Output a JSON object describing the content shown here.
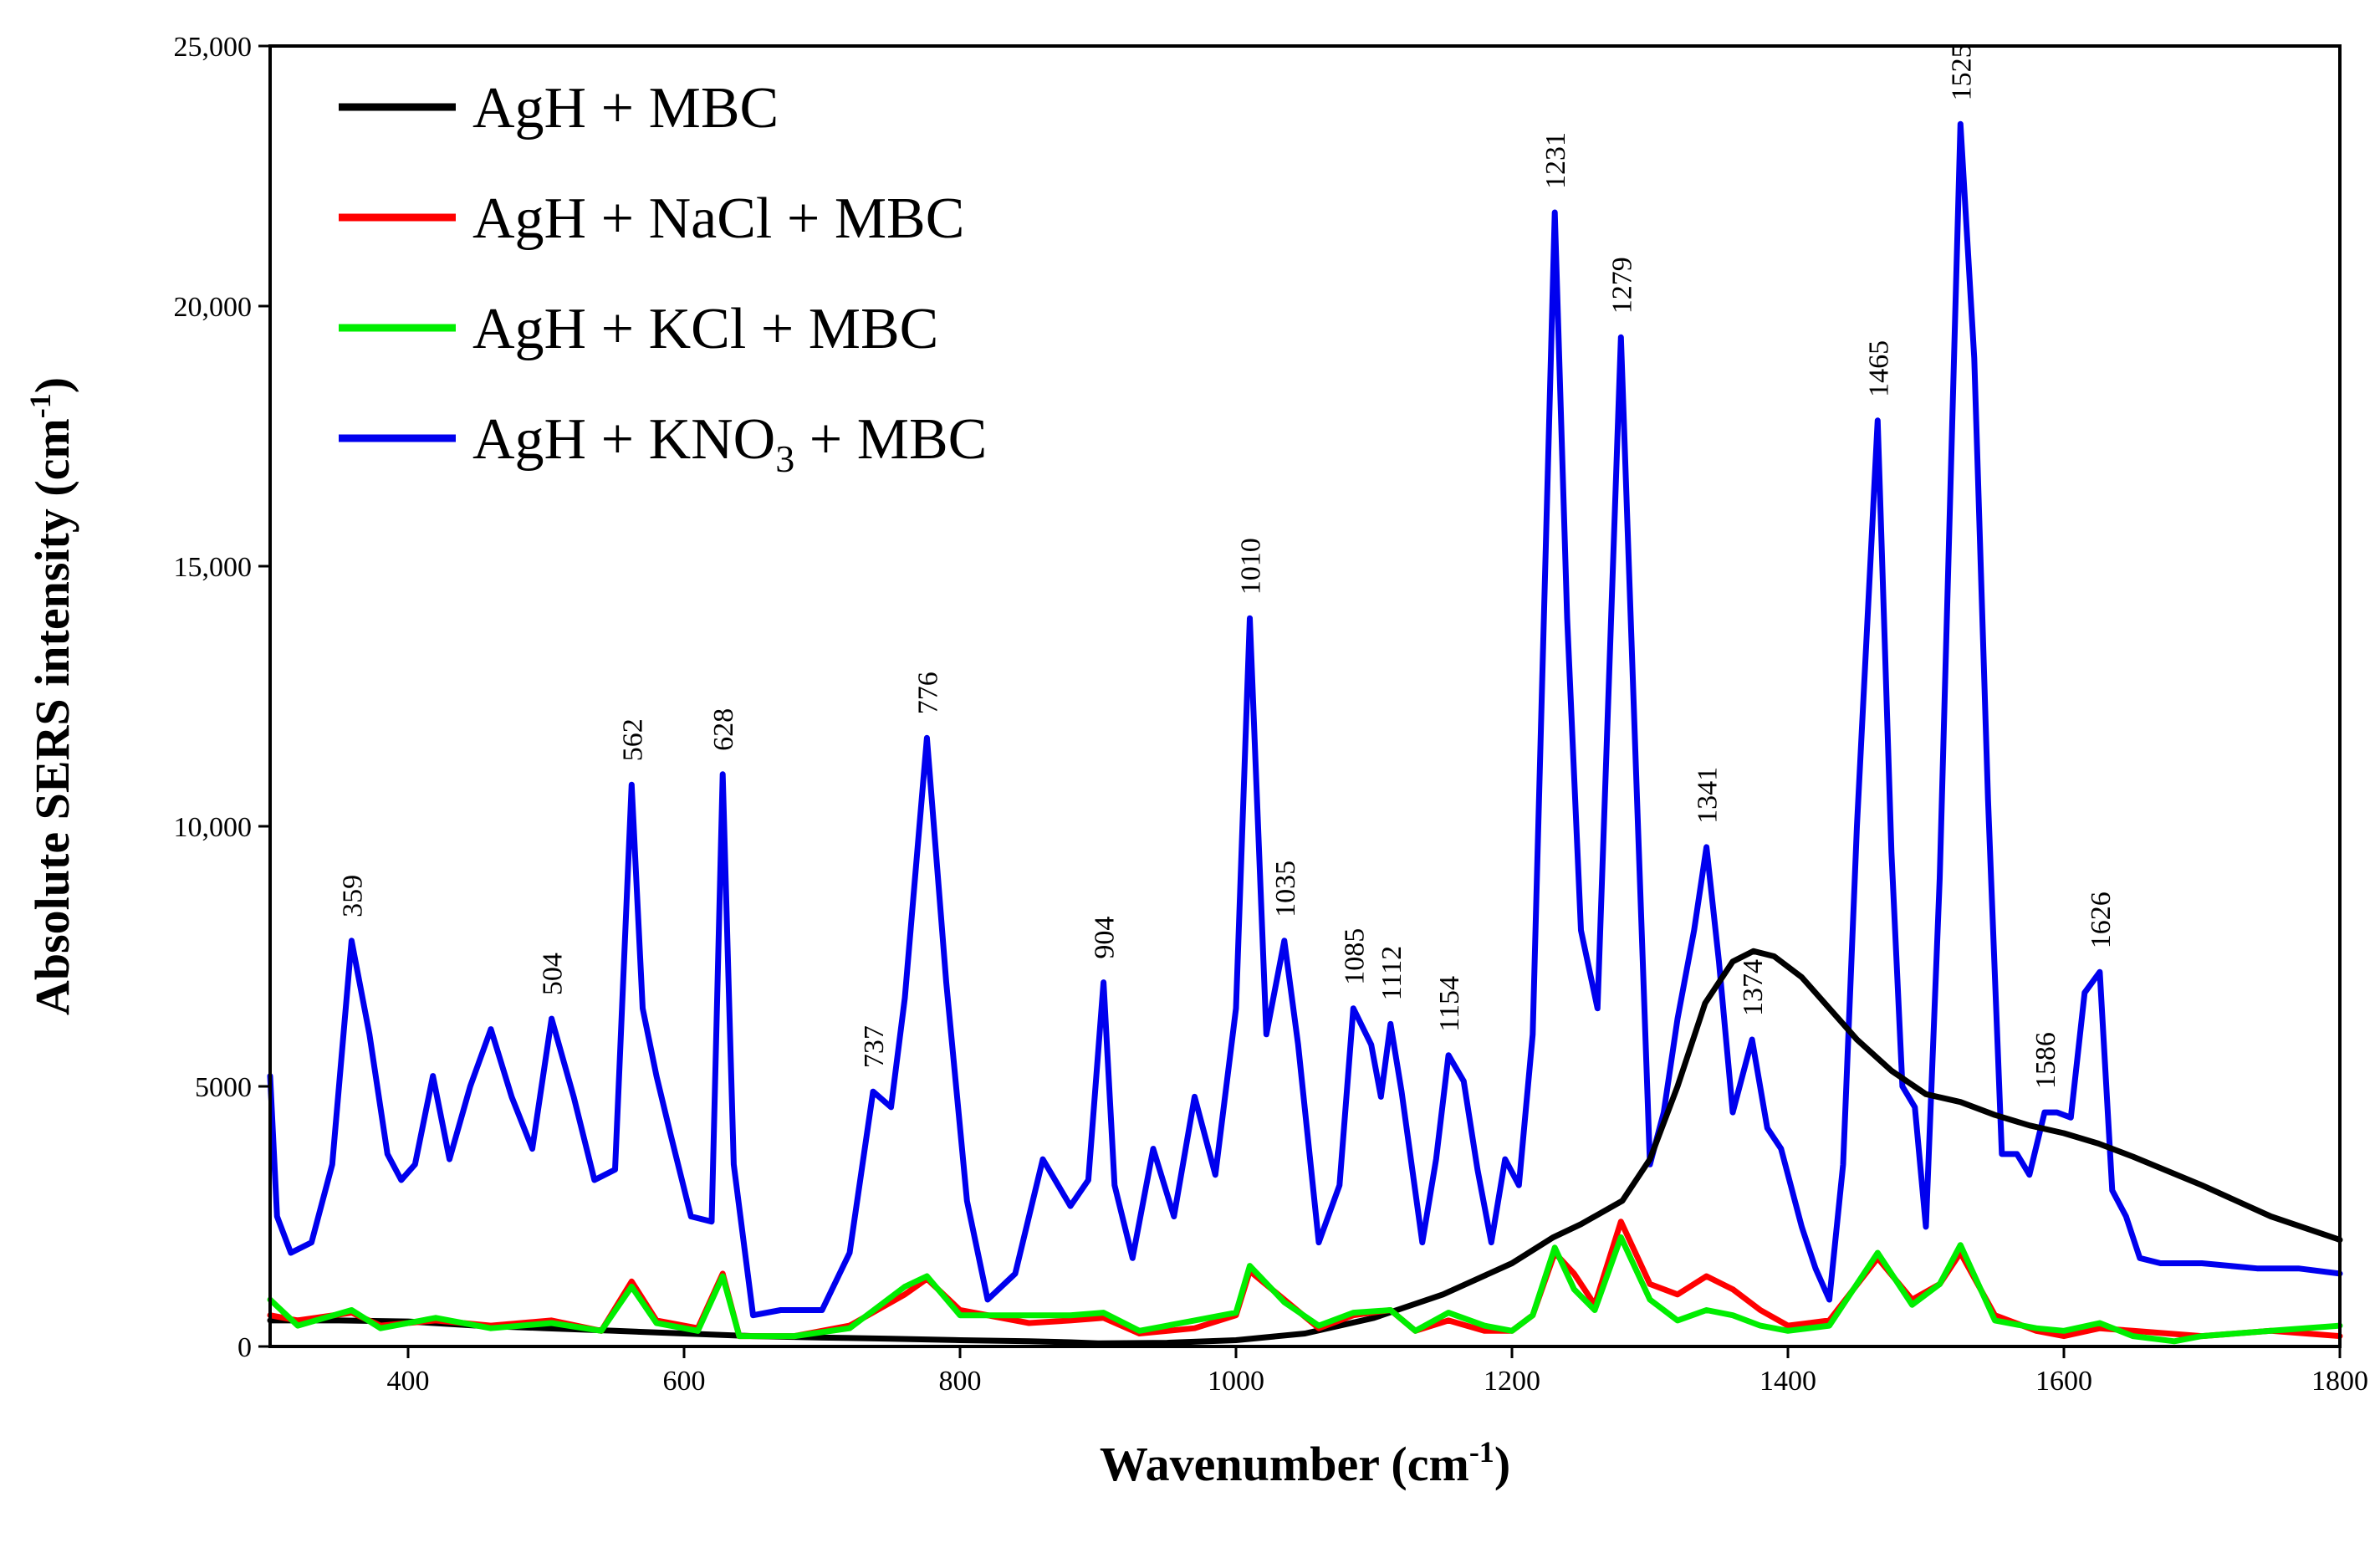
{
  "chart_data": {
    "type": "line",
    "title": "",
    "xlabel": "Wavenumber (cm",
    "xlabel_sup": "-1",
    "xlabel_end": ")",
    "ylabel": "Absolute SERS intensity (cm",
    "ylabel_sup": "-1",
    "ylabel_end": ")",
    "xlim": [
      300,
      1800
    ],
    "ylim": [
      0,
      25000
    ],
    "x_ticks": [
      400,
      600,
      800,
      1000,
      1200,
      1400,
      1600,
      1800
    ],
    "x_tick_labels": [
      "400",
      "600",
      "800",
      "1000",
      "1200",
      "1400",
      "1600",
      "1800"
    ],
    "y_ticks": [
      0,
      5000,
      10000,
      15000,
      20000,
      25000
    ],
    "y_tick_labels": [
      "0",
      "5000",
      "10,000",
      "15,000",
      "20,000",
      "25,000"
    ],
    "legend_position": "top-left",
    "series": [
      {
        "name": "AgH + MBC",
        "color": "#000000",
        "x": [
          300,
          350,
          400,
          450,
          500,
          550,
          600,
          650,
          700,
          750,
          800,
          850,
          880,
          900,
          950,
          1000,
          1050,
          1100,
          1150,
          1200,
          1230,
          1250,
          1280,
          1300,
          1320,
          1340,
          1360,
          1375,
          1390,
          1410,
          1430,
          1450,
          1475,
          1500,
          1525,
          1550,
          1575,
          1600,
          1625,
          1650,
          1700,
          1750,
          1800
        ],
        "values": [
          500,
          500,
          480,
          400,
          350,
          300,
          250,
          200,
          170,
          150,
          120,
          100,
          80,
          60,
          70,
          120,
          250,
          550,
          1000,
          1600,
          2100,
          2350,
          2800,
          3600,
          5000,
          6600,
          7400,
          7600,
          7500,
          7100,
          6500,
          5900,
          5300,
          4850,
          4700,
          4450,
          4250,
          4100,
          3900,
          3650,
          3100,
          2500,
          2050
        ]
      },
      {
        "name": "AgH + NaCl + MBC",
        "color": "#ff0000",
        "x": [
          300,
          320,
          359,
          380,
          420,
          460,
          504,
          540,
          562,
          580,
          610,
          628,
          640,
          680,
          720,
          760,
          776,
          800,
          850,
          880,
          904,
          930,
          970,
          1000,
          1010,
          1035,
          1060,
          1085,
          1112,
          1130,
          1154,
          1180,
          1200,
          1215,
          1231,
          1245,
          1260,
          1279,
          1300,
          1320,
          1341,
          1360,
          1380,
          1400,
          1430,
          1465,
          1490,
          1510,
          1525,
          1550,
          1580,
          1600,
          1626,
          1650,
          1700,
          1750,
          1800
        ],
        "values": [
          600,
          500,
          650,
          400,
          500,
          400,
          500,
          300,
          1250,
          500,
          350,
          1400,
          200,
          200,
          400,
          1000,
          1300,
          700,
          450,
          500,
          550,
          250,
          350,
          600,
          1450,
          900,
          350,
          600,
          700,
          300,
          500,
          300,
          300,
          600,
          1800,
          1400,
          800,
          2400,
          1200,
          1000,
          1350,
          1100,
          700,
          400,
          500,
          1700,
          900,
          1200,
          1800,
          600,
          300,
          200,
          350,
          300,
          200,
          300,
          200
        ]
      },
      {
        "name": "AgH + KCl + MBC",
        "color": "#00ee00",
        "x": [
          300,
          320,
          359,
          380,
          420,
          460,
          504,
          540,
          562,
          580,
          610,
          628,
          640,
          680,
          720,
          760,
          776,
          800,
          850,
          880,
          904,
          930,
          970,
          1000,
          1010,
          1035,
          1060,
          1085,
          1112,
          1130,
          1154,
          1180,
          1200,
          1215,
          1231,
          1245,
          1260,
          1279,
          1300,
          1320,
          1341,
          1360,
          1380,
          1400,
          1430,
          1465,
          1490,
          1510,
          1525,
          1550,
          1580,
          1600,
          1626,
          1650,
          1680,
          1700,
          1750,
          1800
        ],
        "values": [
          900,
          400,
          700,
          350,
          550,
          350,
          450,
          300,
          1150,
          450,
          300,
          1350,
          200,
          200,
          350,
          1150,
          1350,
          600,
          600,
          600,
          650,
          300,
          500,
          650,
          1550,
          850,
          400,
          650,
          700,
          300,
          650,
          400,
          300,
          600,
          1900,
          1100,
          700,
          2100,
          900,
          500,
          700,
          600,
          400,
          300,
          400,
          1800,
          800,
          1200,
          1950,
          500,
          350,
          300,
          450,
          200,
          100,
          200,
          300,
          400
        ]
      },
      {
        "name": "AgH + KNO3 + MBC",
        "color": "#0000ee",
        "x": [
          300,
          305,
          315,
          330,
          345,
          359,
          372,
          385,
          395,
          405,
          418,
          430,
          445,
          460,
          475,
          490,
          504,
          520,
          535,
          550,
          562,
          570,
          580,
          590,
          605,
          620,
          628,
          636,
          650,
          670,
          700,
          720,
          737,
          750,
          760,
          776,
          790,
          805,
          820,
          840,
          860,
          880,
          893,
          904,
          912,
          925,
          940,
          955,
          970,
          985,
          1000,
          1010,
          1022,
          1035,
          1045,
          1060,
          1075,
          1085,
          1098,
          1105,
          1112,
          1120,
          1135,
          1145,
          1154,
          1165,
          1175,
          1185,
          1195,
          1205,
          1215,
          1231,
          1240,
          1250,
          1262,
          1279,
          1290,
          1300,
          1310,
          1320,
          1332,
          1341,
          1350,
          1360,
          1374,
          1385,
          1395,
          1410,
          1420,
          1430,
          1440,
          1450,
          1465,
          1475,
          1483,
          1492,
          1500,
          1510,
          1525,
          1535,
          1545,
          1555,
          1566,
          1575,
          1586,
          1595,
          1605,
          1615,
          1626,
          1635,
          1645,
          1655,
          1670,
          1700,
          1740,
          1770,
          1800
        ],
        "values": [
          5200,
          2500,
          1800,
          2000,
          3500,
          7800,
          6000,
          3700,
          3200,
          3500,
          5200,
          3600,
          5000,
          6100,
          4800,
          3800,
          6300,
          4800,
          3200,
          3400,
          10800,
          6500,
          5200,
          4100,
          2500,
          2400,
          11000,
          3500,
          600,
          700,
          700,
          1800,
          4900,
          4600,
          6700,
          11700,
          7000,
          2800,
          900,
          1400,
          3600,
          2700,
          3200,
          7000,
          3100,
          1700,
          3800,
          2500,
          4800,
          3300,
          6500,
          14000,
          6000,
          7800,
          5800,
          2000,
          3100,
          6500,
          5800,
          4800,
          6200,
          4900,
          2000,
          3600,
          5600,
          5100,
          3400,
          2000,
          3600,
          3100,
          6000,
          21800,
          14000,
          8000,
          6500,
          19400,
          11000,
          3500,
          4500,
          6300,
          8000,
          9600,
          7400,
          4500,
          5900,
          4200,
          3800,
          2300,
          1500,
          900,
          3500,
          10000,
          17800,
          9500,
          5000,
          4600,
          2300,
          9000,
          23500,
          19000,
          10500,
          3700,
          3700,
          3300,
          4500,
          4500,
          4400,
          6800,
          7200,
          3000,
          2500,
          1700,
          1600,
          1600,
          1500,
          1500,
          1400
        ]
      }
    ],
    "peak_annotations": [
      {
        "x": 359,
        "y": 7800,
        "label": "359"
      },
      {
        "x": 504,
        "y": 6300,
        "label": "504"
      },
      {
        "x": 562,
        "y": 10800,
        "label": "562"
      },
      {
        "x": 628,
        "y": 11000,
        "label": "628"
      },
      {
        "x": 737,
        "y": 4900,
        "label": "737"
      },
      {
        "x": 776,
        "y": 11700,
        "label": "776"
      },
      {
        "x": 904,
        "y": 7000,
        "label": "904"
      },
      {
        "x": 1010,
        "y": 14000,
        "label": "1010"
      },
      {
        "x": 1035,
        "y": 7800,
        "label": "1035"
      },
      {
        "x": 1085,
        "y": 6500,
        "label": "1085"
      },
      {
        "x": 1112,
        "y": 6200,
        "label": "1112"
      },
      {
        "x": 1154,
        "y": 5600,
        "label": "1154"
      },
      {
        "x": 1231,
        "y": 21800,
        "label": "1231"
      },
      {
        "x": 1279,
        "y": 19400,
        "label": "1279"
      },
      {
        "x": 1341,
        "y": 9600,
        "label": "1341"
      },
      {
        "x": 1374,
        "y": 5900,
        "label": "1374"
      },
      {
        "x": 1465,
        "y": 17800,
        "label": "1465"
      },
      {
        "x": 1525,
        "y": 23500,
        "label": "1525"
      },
      {
        "x": 1586,
        "y": 4500,
        "label": "1586"
      },
      {
        "x": 1626,
        "y": 7200,
        "label": "1626"
      }
    ],
    "legend": [
      {
        "label": "AgH + MBC",
        "color": "#000000"
      },
      {
        "label": "AgH + NaCl + MBC",
        "color": "#ff0000"
      },
      {
        "label": "AgH + KCl + MBC",
        "color": "#00ee00"
      },
      {
        "label": "AgH + KNO",
        "sub": "3",
        "suffix": " + MBC",
        "color": "#0000ee"
      }
    ]
  }
}
